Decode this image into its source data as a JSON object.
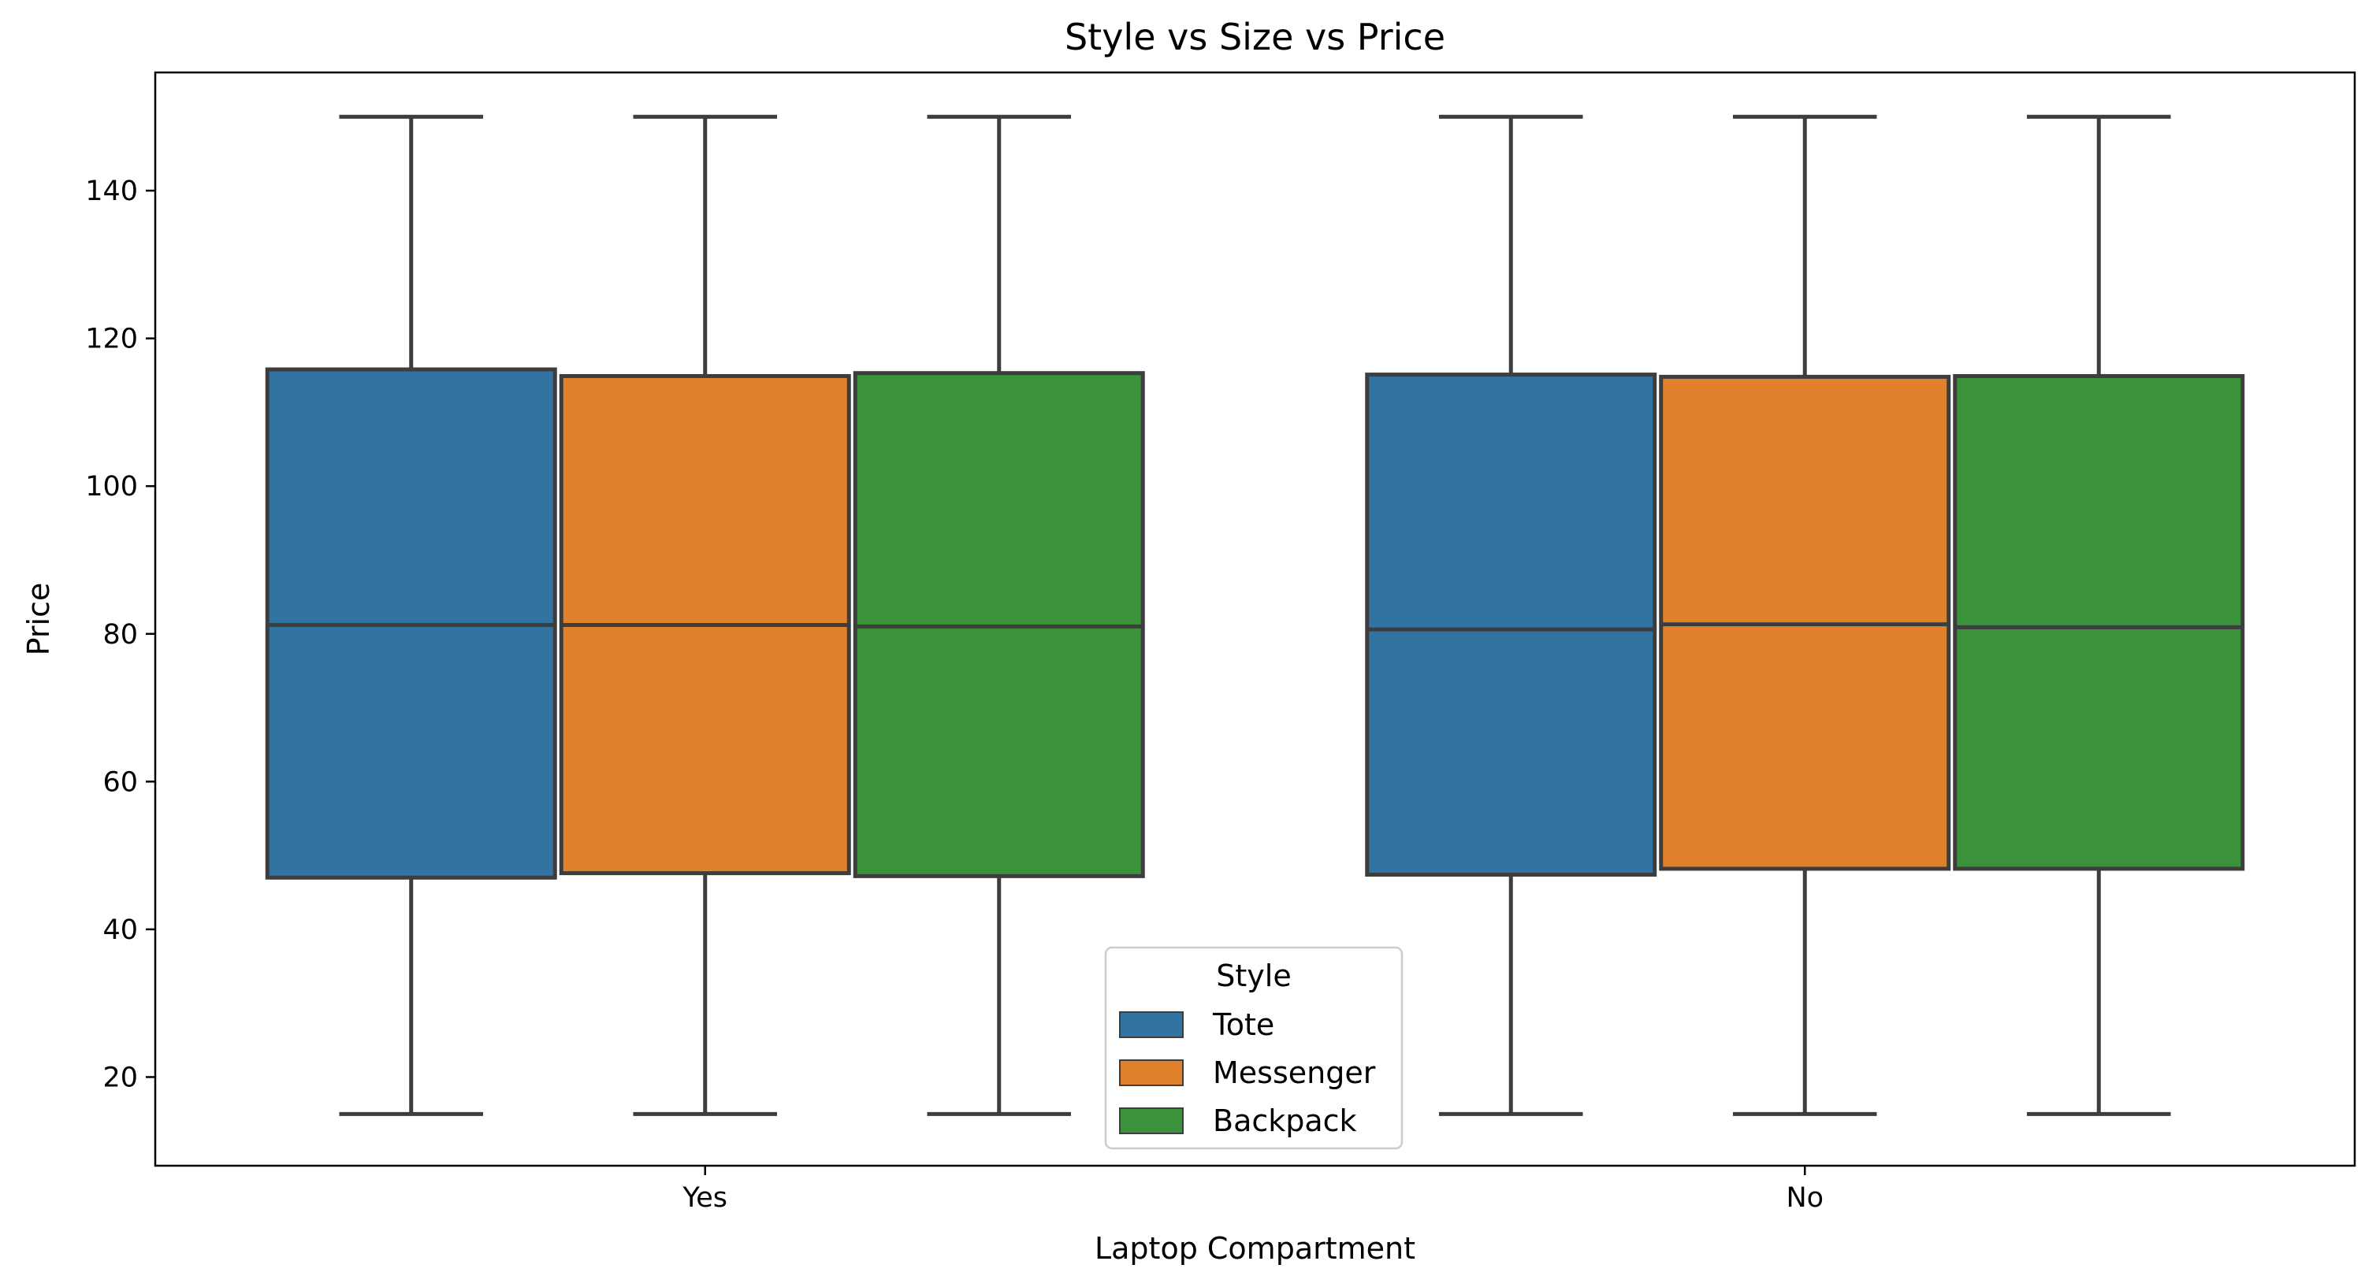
{
  "chart_data": {
    "type": "box",
    "title": "Style vs Size vs Price",
    "xlabel": "Laptop Compartment",
    "ylabel": "Price",
    "categories": [
      "Yes",
      "No"
    ],
    "ylim": [
      8,
      156
    ],
    "yticks": [
      20,
      40,
      60,
      80,
      100,
      120,
      140
    ],
    "grid": false,
    "legend": {
      "title": "Style",
      "placement": "bottom-center"
    },
    "series": [
      {
        "name": "Tote",
        "color": "#3274a1",
        "boxes": [
          {
            "category": "Yes",
            "min": 15,
            "q1": 47,
            "median": 81.2,
            "q3": 115.8,
            "max": 150
          },
          {
            "category": "No",
            "min": 15,
            "q1": 47.4,
            "median": 80.6,
            "q3": 115.1,
            "max": 150
          }
        ]
      },
      {
        "name": "Messenger",
        "color": "#e1812c",
        "boxes": [
          {
            "category": "Yes",
            "min": 15,
            "q1": 47.6,
            "median": 81.2,
            "q3": 114.9,
            "max": 150
          },
          {
            "category": "No",
            "min": 15,
            "q1": 48.2,
            "median": 81.3,
            "q3": 114.8,
            "max": 150
          }
        ]
      },
      {
        "name": "Backpack",
        "color": "#3a923a",
        "boxes": [
          {
            "category": "Yes",
            "min": 15,
            "q1": 47.2,
            "median": 81.0,
            "q3": 115.3,
            "max": 150
          },
          {
            "category": "No",
            "min": 15,
            "q1": 48.2,
            "median": 80.9,
            "q3": 114.9,
            "max": 150
          }
        ]
      }
    ],
    "line_color": "#3d3d3d"
  }
}
